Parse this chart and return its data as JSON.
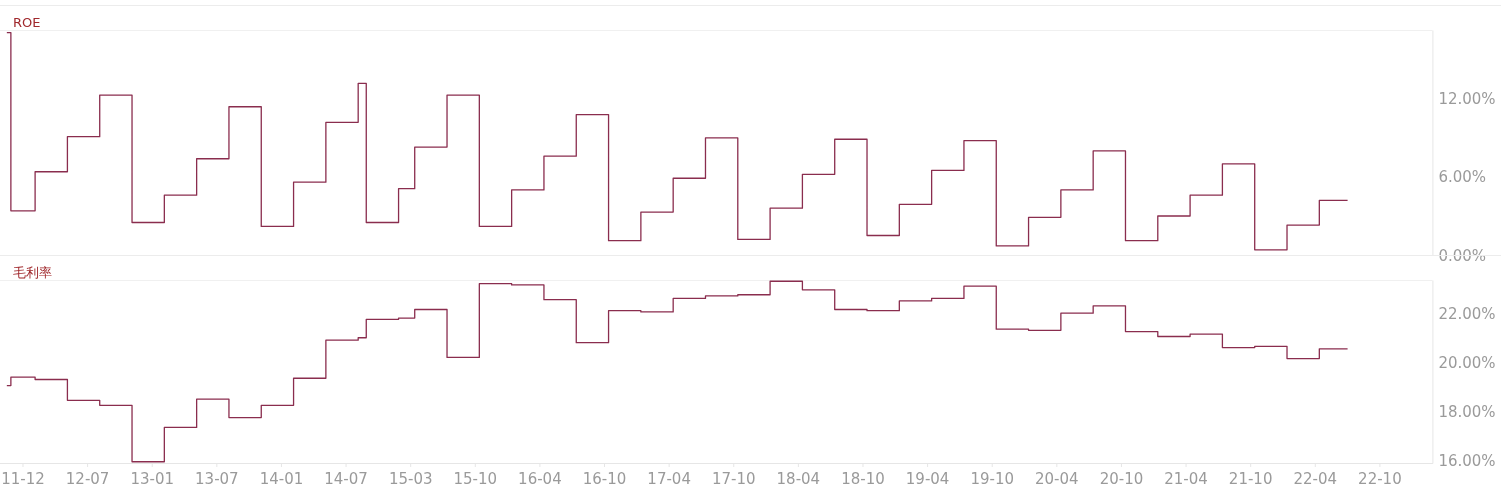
{
  "chart_data": [
    {
      "type": "step",
      "title": "ROE",
      "color": "#8a2d4e",
      "tick_labels": "y",
      "categories": [
        null,
        null,
        null,
        null,
        null,
        null,
        null,
        null,
        null,
        null,
        null,
        null,
        null,
        null,
        null,
        null,
        null,
        null,
        null,
        null,
        null,
        null,
        null,
        null,
        null,
        null,
        null,
        null,
        null,
        null,
        null,
        null,
        null,
        null,
        null,
        null,
        null,
        null,
        null,
        null,
        null,
        null,
        null,
        null,
        null,
        null,
        null,
        null,
        null,
        null,
        null,
        null,
        null,
        null,
        null,
        null,
        null,
        null,
        null,
        null,
        null,
        null,
        null,
        null,
        null,
        null,
        null,
        null,
        null,
        null,
        null,
        null,
        null,
        null,
        null,
        null,
        null,
        null,
        null,
        null,
        null,
        null,
        null,
        null,
        null,
        null,
        null,
        null,
        null,
        null,
        null,
        null,
        null,
        null,
        null,
        null,
        null,
        null,
        null,
        null,
        null,
        null,
        null,
        null,
        null,
        null,
        null,
        null,
        null,
        null,
        null,
        null,
        null,
        null,
        null,
        null,
        null,
        null,
        null,
        null,
        null,
        null,
        null,
        null,
        null,
        null,
        null,
        null,
        null,
        null,
        null,
        null,
        null,
        null,
        null,
        null,
        null,
        null,
        null,
        null,
        null,
        null,
        null,
        null,
        null,
        null,
        null,
        null,
        null,
        null,
        null,
        null,
        null,
        null,
        null,
        null,
        null,
        null,
        null,
        null,
        null,
        null,
        null,
        null,
        null,
        null,
        null
      ],
      "values": [
        17.1,
        3.4,
        3.4,
        3.4,
        6.4,
        6.4,
        6.4,
        6.4,
        9.1,
        9.1,
        9.1,
        9.1,
        12.3,
        12.3,
        12.3,
        12.3,
        2.5,
        2.5,
        2.5,
        2.5,
        4.6,
        4.6,
        4.6,
        4.6,
        7.4,
        7.4,
        7.4,
        7.4,
        11.4,
        11.4,
        11.4,
        11.4,
        2.2,
        2.2,
        2.2,
        2.2,
        5.6,
        5.6,
        5.6,
        5.6,
        10.2,
        10.2,
        10.2,
        10.2,
        13.2,
        2.5,
        2.5,
        2.5,
        2.5,
        5.1,
        5.1,
        8.3,
        8.3,
        8.3,
        8.3,
        12.3,
        12.3,
        12.3,
        12.3,
        2.2,
        2.2,
        2.2,
        2.2,
        5.0,
        5.0,
        5.0,
        5.0,
        7.6,
        7.6,
        7.6,
        7.6,
        10.8,
        10.8,
        10.8,
        10.8,
        1.1,
        1.1,
        1.1,
        1.1,
        3.3,
        3.3,
        3.3,
        3.3,
        5.9,
        5.9,
        5.9,
        5.9,
        9.0,
        9.0,
        9.0,
        9.0,
        1.2,
        1.2,
        1.2,
        1.2,
        3.6,
        3.6,
        3.6,
        3.6,
        6.2,
        6.2,
        6.2,
        6.2,
        8.9,
        8.9,
        8.9,
        8.9,
        1.5,
        1.5,
        1.5,
        1.5,
        3.9,
        3.9,
        3.9,
        3.9,
        6.5,
        6.5,
        6.5,
        6.5,
        8.8,
        8.8,
        8.8,
        8.8,
        0.7,
        0.7,
        0.7,
        0.7,
        2.9,
        2.9,
        2.9,
        2.9,
        5.0,
        5.0,
        5.0,
        5.0,
        8.0,
        8.0,
        8.0,
        8.0,
        1.1,
        1.1,
        1.1,
        1.1,
        3.0,
        3.0,
        3.0,
        3.0,
        4.6,
        4.6,
        4.6,
        4.6,
        7.0,
        7.0,
        7.0,
        7.0,
        0.4,
        0.4,
        0.4,
        0.4,
        2.3,
        2.3,
        2.3,
        2.3,
        4.2,
        4.2,
        4.2,
        4.2
      ],
      "ylim": [
        0,
        17.3
      ],
      "yticks": [
        {
          "value": 0,
          "label": "0.00%"
        },
        {
          "value": 6,
          "label": "6.00%"
        },
        {
          "value": 12,
          "label": "12.00%"
        }
      ]
    },
    {
      "type": "step",
      "title": "毛利率",
      "color": "#8a2d4e",
      "categories": [
        null,
        null,
        "11-12",
        null,
        null,
        null,
        null,
        null,
        null,
        null,
        "12-07",
        null,
        null,
        null,
        null,
        null,
        null,
        null,
        "13-01",
        null,
        null,
        null,
        null,
        null,
        null,
        null,
        "13-07",
        null,
        null,
        null,
        null,
        null,
        null,
        null,
        "14-01",
        null,
        null,
        null,
        null,
        null,
        null,
        null,
        "14-07",
        null,
        null,
        null,
        null,
        null,
        null,
        null,
        "15-03",
        null,
        null,
        null,
        null,
        null,
        null,
        null,
        "15-10",
        null,
        null,
        null,
        null,
        null,
        null,
        null,
        "16-04",
        null,
        null,
        null,
        null,
        null,
        null,
        null,
        "16-10",
        null,
        null,
        null,
        null,
        null,
        null,
        null,
        "17-04",
        null,
        null,
        null,
        null,
        null,
        null,
        null,
        "17-10",
        null,
        null,
        null,
        null,
        null,
        null,
        null,
        "18-04",
        null,
        null,
        null,
        null,
        null,
        null,
        null,
        "18-10",
        null,
        null,
        null,
        null,
        null,
        null,
        null,
        "19-04",
        null,
        null,
        null,
        null,
        null,
        null,
        null,
        "19-10",
        null,
        null,
        null,
        null,
        null,
        null,
        null,
        "20-04",
        null,
        null,
        null,
        null,
        null,
        null,
        null,
        "20-10",
        null,
        null,
        null,
        null,
        null,
        null,
        null,
        "21-04",
        null,
        null,
        null,
        null,
        null,
        null,
        null,
        "21-10",
        null,
        null,
        null,
        null,
        null,
        null,
        null,
        "22-04",
        null,
        null,
        null,
        null,
        null,
        null,
        null,
        "22-10",
        null,
        null,
        null,
        null,
        null,
        null
      ],
      "values": [
        19.05,
        19.4,
        19.4,
        19.4,
        19.3,
        19.3,
        19.3,
        19.3,
        18.45,
        18.45,
        18.45,
        18.45,
        18.25,
        18.25,
        18.25,
        18.25,
        15.95,
        15.95,
        15.95,
        15.95,
        17.35,
        17.35,
        17.35,
        17.35,
        18.5,
        18.5,
        18.5,
        18.5,
        17.75,
        17.75,
        17.75,
        17.75,
        18.25,
        18.25,
        18.25,
        18.25,
        19.35,
        19.35,
        19.35,
        19.35,
        20.9,
        20.9,
        20.9,
        20.9,
        21.0,
        21.75,
        21.75,
        21.75,
        21.75,
        21.8,
        21.8,
        22.15,
        22.15,
        22.15,
        22.15,
        20.2,
        20.2,
        20.2,
        20.2,
        23.2,
        23.2,
        23.2,
        23.2,
        23.15,
        23.15,
        23.15,
        23.15,
        22.55,
        22.55,
        22.55,
        22.55,
        20.8,
        20.8,
        20.8,
        20.8,
        22.1,
        22.1,
        22.1,
        22.1,
        22.05,
        22.05,
        22.05,
        22.05,
        22.6,
        22.6,
        22.6,
        22.6,
        22.7,
        22.7,
        22.7,
        22.7,
        22.75,
        22.75,
        22.75,
        22.75,
        23.3,
        23.3,
        23.3,
        23.3,
        22.95,
        22.95,
        22.95,
        22.95,
        22.15,
        22.15,
        22.15,
        22.15,
        22.1,
        22.1,
        22.1,
        22.1,
        22.5,
        22.5,
        22.5,
        22.5,
        22.6,
        22.6,
        22.6,
        22.6,
        23.1,
        23.1,
        23.1,
        23.1,
        21.35,
        21.35,
        21.35,
        21.35,
        21.3,
        21.3,
        21.3,
        21.3,
        22.0,
        22.0,
        22.0,
        22.0,
        22.3,
        22.3,
        22.3,
        22.3,
        21.25,
        21.25,
        21.25,
        21.25,
        21.05,
        21.05,
        21.05,
        21.05,
        21.15,
        21.15,
        21.15,
        21.15,
        20.6,
        20.6,
        20.6,
        20.6,
        20.65,
        20.65,
        20.65,
        20.65,
        20.15,
        20.15,
        20.15,
        20.15,
        20.55,
        20.55,
        20.55,
        20.55,
        null,
        null,
        null,
        null,
        null,
        null,
        null,
        null,
        null,
        null
      ],
      "ylim": [
        15.9,
        23.35
      ],
      "yticks": [
        {
          "value": 16,
          "label": "16.00%"
        },
        {
          "value": 18,
          "label": "18.00%"
        },
        {
          "value": 20,
          "label": "20.00%"
        },
        {
          "value": 22,
          "label": "22.00%"
        }
      ]
    }
  ]
}
